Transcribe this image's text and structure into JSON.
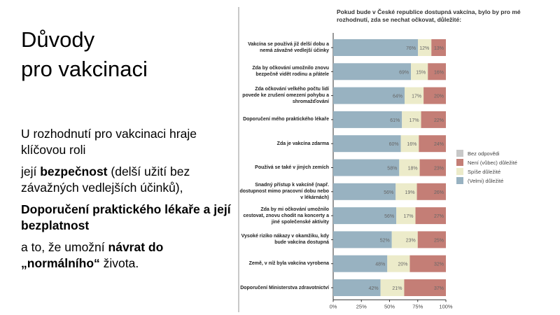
{
  "slide": {
    "title_line1": "Důvody",
    "title_line2": "pro vakcinaci",
    "p1": "U rozhodnutí pro vakcinaci hraje klíčovou roli",
    "p2_pre": "její ",
    "p2_bold": "bezpečnost",
    "p2_post": " (delší užití bez závažných vedlejších účinků),",
    "p3_bold": "Doporučení praktického lékaře a její bezplatnost",
    "p4_pre": "a to, že umožní ",
    "p4_bold1": "návrat do",
    "p4_bold2": "„normálního“",
    "p4_mid": " ",
    "p4_post": " života",
    "p4_end": "."
  },
  "chart_data": {
    "type": "bar",
    "orientation": "horizontal-stacked-100",
    "title": "Pokud bude v České republice dostupná vakcína, bylo by pro mé rozhodnutí, zda se nechat očkovat, důležité:",
    "categories": [
      "Vakcína se používá již delší dobu a nemá závažné vedlejší účinky",
      "Zda by očkování umožnilo znovu bezpečně vidět rodinu a přátele",
      "Zda očkování velkého počtu lidí povede ke zrušení omezení pohybu a shromažďování",
      "Doporučení mého praktického lékaře",
      "Zda je vakcína zdarma",
      "Používá se také v jiných zemích",
      "Snadný přístup k vakcíně (např. dostupnost mimo pracovní dobu nebo v lékárnách)",
      "Zda by mi očkování umožnilo cestovat, znovu chodit na koncerty a jiné společenské aktivity",
      "Vysoké riziko nákazy v okamžiku, kdy bude vakcína dostupná",
      "Země, v níž byla vakcína vyrobena",
      "Doporučení Ministerstva zdravotnictví"
    ],
    "series": [
      {
        "name": "(Velmi) důležité",
        "color": "#98b2c1",
        "values": [
          76,
          69,
          64,
          61,
          60,
          58,
          56,
          56,
          52,
          48,
          42
        ]
      },
      {
        "name": "Spíše důležité",
        "color": "#ecebca",
        "values": [
          12,
          15,
          17,
          17,
          16,
          18,
          19,
          17,
          23,
          20,
          21
        ]
      },
      {
        "name": "Není (vůbec) důležité",
        "color": "#c47e76",
        "values": [
          13,
          16,
          20,
          22,
          24,
          23,
          26,
          27,
          25,
          32,
          37
        ]
      },
      {
        "name": "Bez odpovědi",
        "color": "#c8c8c8",
        "values": [
          0,
          0,
          0,
          0,
          0,
          0,
          0,
          0,
          0,
          0,
          0
        ]
      }
    ],
    "legend_order": [
      "Bez odpovědi",
      "Není (vůbec) důležité",
      "Spíše důležité",
      "(Velmi) důležité"
    ],
    "xticks": [
      "0%",
      "25%",
      "50%",
      "75%",
      "100%"
    ],
    "xlim": [
      0,
      100
    ],
    "legend": "right"
  }
}
